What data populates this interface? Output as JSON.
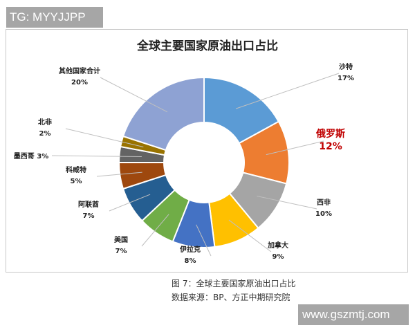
{
  "watermark_top": "TG: MYYJJPP",
  "watermark_bottom": "www.gszmtj.com",
  "caption": "图 7：全球主要国家原油出口占比",
  "source": "数据来源：BP、方正中期研究院",
  "chart_data": {
    "type": "pie",
    "donut": true,
    "title": "全球主要国家原油出口占比",
    "categories": [
      "沙特",
      "俄罗斯",
      "西非",
      "加拿大",
      "伊拉克",
      "美国",
      "阿联酋",
      "科威特",
      "墨西哥",
      "北非",
      "其他国家合计"
    ],
    "values": [
      17,
      12,
      10,
      9,
      8,
      7,
      7,
      5,
      3,
      2,
      20
    ],
    "labels": [
      "17%",
      "12%",
      "10%",
      "9%",
      "8%",
      "7%",
      "7%",
      "5%",
      "3%",
      "2%",
      "20%"
    ],
    "colors": [
      "#5b9bd5",
      "#ed7d31",
      "#a5a5a5",
      "#ffc000",
      "#4472c4",
      "#70ad47",
      "#255e91",
      "#9e480e",
      "#636363",
      "#997300",
      "#8ea2d3"
    ],
    "highlight": {
      "category": "俄罗斯",
      "color": "#c00000"
    },
    "legend": "none"
  }
}
